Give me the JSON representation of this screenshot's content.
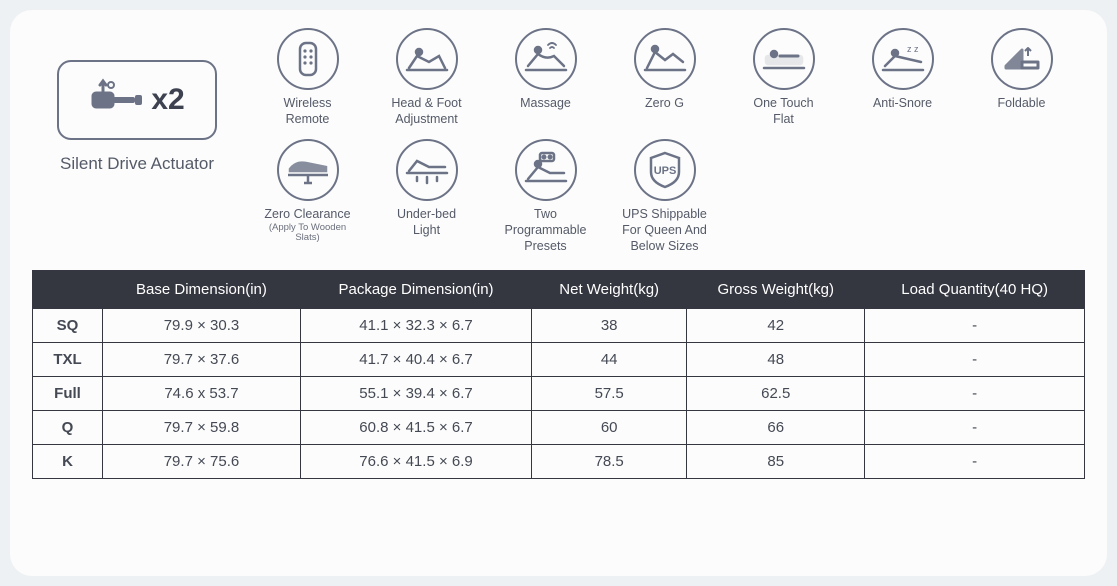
{
  "colors": {
    "page_bg": "#eef1f4",
    "card_bg": "#fbfcfb",
    "stroke": "#6d7387",
    "text": "#474b57",
    "table_header_bg": "#343640",
    "table_header_fg": "#ffffff",
    "border": "#343640"
  },
  "actuator": {
    "multiplier": "x2",
    "label": "Silent Drive Actuator"
  },
  "features": {
    "row1": [
      {
        "id": "wireless-remote",
        "label": "Wireless\nRemote",
        "sub": ""
      },
      {
        "id": "head-foot-adjustment",
        "label": "Head & Foot\nAdjustment",
        "sub": ""
      },
      {
        "id": "massage",
        "label": "Massage",
        "sub": ""
      },
      {
        "id": "zero-g",
        "label": "Zero G",
        "sub": ""
      },
      {
        "id": "one-touch-flat",
        "label": "One Touch\nFlat",
        "sub": ""
      },
      {
        "id": "anti-snore",
        "label": "Anti-Snore",
        "sub": ""
      },
      {
        "id": "foldable",
        "label": "Foldable",
        "sub": ""
      }
    ],
    "row2": [
      {
        "id": "zero-clearance",
        "label": "Zero Clearance",
        "sub": "(Apply To Wooden Slats)"
      },
      {
        "id": "under-bed-light",
        "label": "Under-bed\nLight",
        "sub": ""
      },
      {
        "id": "two-prog-presets",
        "label": "Two\nProgrammable\nPresets",
        "sub": ""
      },
      {
        "id": "ups-shippable",
        "label": "UPS Shippable\nFor Queen And\nBelow Sizes",
        "sub": ""
      }
    ]
  },
  "table": {
    "columns": [
      "",
      "Base Dimension(in)",
      "Package Dimension(in)",
      "Net Weight(kg)",
      "Gross Weight(kg)",
      "Load Quantity(40 HQ)"
    ],
    "rows": [
      {
        "size": "SQ",
        "base": "79.9 × 30.3",
        "pkg": "41.1 × 32.3 × 6.7",
        "net": "38",
        "gross": "42",
        "load": "-"
      },
      {
        "size": "TXL",
        "base": "79.7 × 37.6",
        "pkg": "41.7 × 40.4 × 6.7",
        "net": "44",
        "gross": "48",
        "load": "-"
      },
      {
        "size": "Full",
        "base": "74.6 x 53.7",
        "pkg": "55.1 × 39.4 × 6.7",
        "net": "57.5",
        "gross": "62.5",
        "load": "-"
      },
      {
        "size": "Q",
        "base": "79.7 × 59.8",
        "pkg": "60.8 × 41.5 × 6.7",
        "net": "60",
        "gross": "66",
        "load": "-"
      },
      {
        "size": "K",
        "base": "79.7 × 75.6",
        "pkg": "76.6 × 41.5 × 6.9",
        "net": "78.5",
        "gross": "85",
        "load": "-"
      }
    ]
  }
}
